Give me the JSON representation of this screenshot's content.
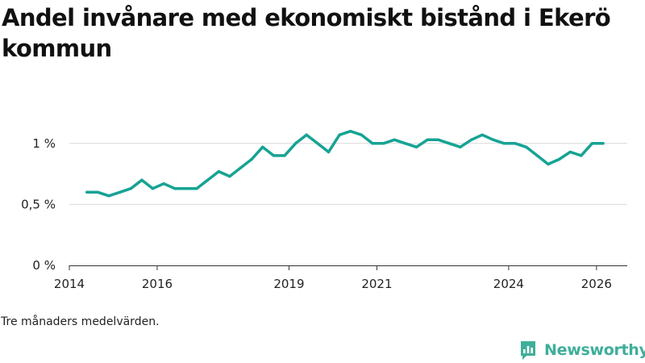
{
  "title": "Andel invånare med ekonomiskt bistånd i Ekerö kommun",
  "footnote": "Tre månaders medelvärden.",
  "brand": {
    "name": "Newsworthy",
    "icon": "newsworthy-logo-icon",
    "color": "#3fae9a"
  },
  "colors": {
    "line": "#16a394",
    "grid": "#d9d9d9",
    "axis": "#333333"
  },
  "chart_data": {
    "type": "line",
    "title": "Andel invånare med ekonomiskt bistånd i Ekerö kommun",
    "xlabel": "",
    "ylabel": "",
    "xlim": [
      2014.0,
      2026.7
    ],
    "ylim": [
      0,
      1.25
    ],
    "grid": true,
    "x_ticks": [
      {
        "value": 2014,
        "label": "2014"
      },
      {
        "value": 2016,
        "label": "2016"
      },
      {
        "value": 2019,
        "label": "2019"
      },
      {
        "value": 2021,
        "label": "2021"
      },
      {
        "value": 2024,
        "label": "2024"
      },
      {
        "value": 2026,
        "label": "2026"
      }
    ],
    "y_ticks": [
      {
        "value": 0,
        "label": "0 %"
      },
      {
        "value": 0.5,
        "label": "0,5 %"
      },
      {
        "value": 1,
        "label": "1 %"
      }
    ],
    "series": [
      {
        "name": "Andel invånare med ekonomiskt bistånd",
        "x": [
          2014.4,
          2014.65,
          2014.9,
          2015.15,
          2015.4,
          2015.65,
          2015.9,
          2016.15,
          2016.4,
          2016.65,
          2016.9,
          2017.15,
          2017.4,
          2017.65,
          2017.9,
          2018.15,
          2018.4,
          2018.65,
          2018.9,
          2019.15,
          2019.4,
          2019.65,
          2019.9,
          2020.15,
          2020.4,
          2020.65,
          2020.9,
          2021.15,
          2021.4,
          2021.65,
          2021.9,
          2022.15,
          2022.4,
          2022.65,
          2022.9,
          2023.15,
          2023.4,
          2023.65,
          2023.9,
          2024.15,
          2024.4,
          2024.65,
          2024.9,
          2025.15,
          2025.4,
          2025.65,
          2025.9,
          2026.15
        ],
        "values": [
          0.6,
          0.6,
          0.57,
          0.6,
          0.63,
          0.7,
          0.63,
          0.67,
          0.63,
          0.63,
          0.63,
          0.7,
          0.77,
          0.73,
          0.8,
          0.87,
          0.97,
          0.9,
          0.9,
          1.0,
          1.07,
          1.0,
          0.93,
          1.07,
          1.1,
          1.07,
          1.0,
          1.0,
          1.03,
          1.0,
          0.97,
          1.03,
          1.03,
          1.0,
          0.97,
          1.03,
          1.07,
          1.03,
          1.0,
          1.0,
          0.97,
          0.9,
          0.83,
          0.87,
          0.93,
          0.9,
          1.0,
          1.0
        ]
      }
    ]
  }
}
